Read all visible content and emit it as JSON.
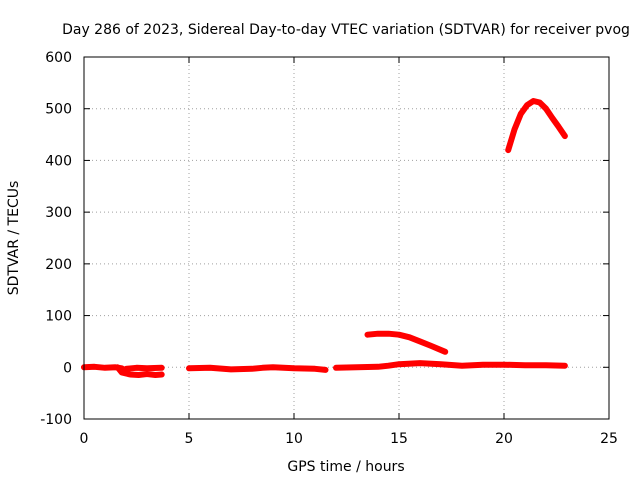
{
  "chart_data": {
    "type": "line",
    "title": "Day 286 of 2023, Sidereal Day-to-day VTEC variation (SDTVAR) for receiver pvog",
    "xlabel": "GPS time / hours",
    "ylabel": "SDTVAR / TECUs",
    "xlim": [
      0,
      25
    ],
    "ylim": [
      -100,
      600
    ],
    "xticks": [
      0,
      5,
      10,
      15,
      20,
      25
    ],
    "yticks": [
      -100,
      0,
      100,
      200,
      300,
      400,
      500,
      600
    ],
    "xtick_labels": [
      "0",
      "5",
      "10",
      "15",
      "20",
      "25"
    ],
    "ytick_labels": [
      "-100",
      "0",
      "100",
      "200",
      "300",
      "400",
      "500",
      "600"
    ],
    "grid": true,
    "legend": "none",
    "color": "#ff0000",
    "series": [
      {
        "name": "segment-1",
        "x": [
          0.0,
          0.5,
          1.0,
          1.5,
          1.8
        ],
        "y": [
          0,
          1,
          -1,
          0,
          -2
        ]
      },
      {
        "name": "segment-2",
        "x": [
          1.6,
          1.8,
          2.2,
          2.6,
          3.0,
          3.4,
          3.7
        ],
        "y": [
          0,
          -10,
          -14,
          -15,
          -13,
          -15,
          -14
        ]
      },
      {
        "name": "segment-3",
        "x": [
          2.0,
          2.5,
          3.0,
          3.7
        ],
        "y": [
          -3,
          -1,
          -2,
          -1
        ]
      },
      {
        "name": "segment-4",
        "x": [
          5.0,
          6.0,
          7.0,
          8.0,
          8.5,
          9.0,
          10.0,
          11.0,
          11.5
        ],
        "y": [
          -2,
          -1,
          -4,
          -3,
          -1,
          0,
          -2,
          -3,
          -5
        ]
      },
      {
        "name": "segment-5",
        "x": [
          12.0,
          13.0,
          14.0,
          14.5,
          15.0,
          16.0,
          17.0,
          18.0,
          19.0,
          20.0,
          21.0,
          22.0,
          22.9
        ],
        "y": [
          -1,
          0,
          1,
          3,
          6,
          8,
          6,
          3,
          5,
          5,
          4,
          4,
          3
        ]
      },
      {
        "name": "segment-6",
        "x": [
          13.5,
          14.0,
          14.5,
          15.0,
          15.5,
          16.0,
          16.5,
          17.2
        ],
        "y": [
          63,
          65,
          65,
          63,
          58,
          50,
          42,
          30
        ]
      },
      {
        "name": "segment-7",
        "x": [
          20.2,
          20.5,
          20.8,
          21.1,
          21.4,
          21.7,
          22.0,
          22.3,
          22.6,
          22.9
        ],
        "y": [
          420,
          460,
          490,
          507,
          515,
          512,
          500,
          482,
          465,
          447
        ]
      }
    ]
  }
}
